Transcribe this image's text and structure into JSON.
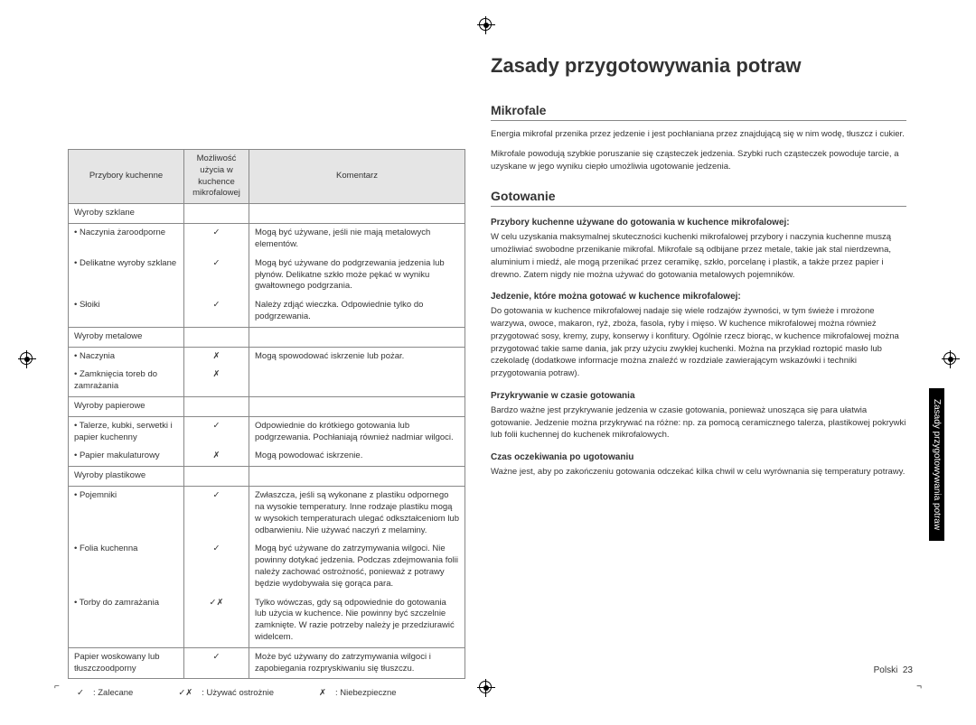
{
  "title": "Zasady przygotowywania potraw",
  "table": {
    "headers": [
      "Przybory kuchenne",
      "Możliwość użycia w kuchence mikrofalowej",
      "Komentarz"
    ],
    "rows": [
      {
        "cat": "Wyroby szklane",
        "item": "",
        "sym": "",
        "com": ""
      },
      {
        "cat": "",
        "item": "Naczynia żaroodporne",
        "sym": "✓",
        "com": "Mogą być używane, jeśli nie mają metalowych elementów."
      },
      {
        "cat": "",
        "item": "Delikatne wyroby szklane",
        "sym": "✓",
        "com": "Mogą być używane do podgrzewania jedzenia lub płynów. Delikatne szkło może pękać w wyniku gwałtownego podgrzania."
      },
      {
        "cat": "",
        "item": "Słoiki",
        "sym": "✓",
        "com": "Należy zdjąć wieczka. Odpowiednie tylko do podgrzewania."
      },
      {
        "cat": "Wyroby metalowe",
        "item": "",
        "sym": "",
        "com": ""
      },
      {
        "cat": "",
        "item": "Naczynia",
        "sym": "✗",
        "com": "Mogą spowodować iskrzenie lub pożar."
      },
      {
        "cat": "",
        "item": "Zamknięcia toreb do zamrażania",
        "sym": "✗",
        "com": ""
      },
      {
        "cat": "Wyroby papierowe",
        "item": "",
        "sym": "",
        "com": ""
      },
      {
        "cat": "",
        "item": "Talerze, kubki, serwetki i papier kuchenny",
        "sym": "✓",
        "com": "Odpowiednie do krótkiego gotowania lub podgrzewania. Pochłaniają również nadmiar wilgoci."
      },
      {
        "cat": "",
        "item": "Papier makulaturowy",
        "sym": "✗",
        "com": "Mogą powodować iskrzenie."
      },
      {
        "cat": "Wyroby plastikowe",
        "item": "",
        "sym": "",
        "com": ""
      },
      {
        "cat": "",
        "item": "Pojemniki",
        "sym": "✓",
        "com": "Zwłaszcza, jeśli są wykonane z plastiku odpornego na wysokie temperatury. Inne rodzaje plastiku mogą w wysokich temperaturach ulegać odkształceniom lub odbarwieniu. Nie używać naczyń z melaminy."
      },
      {
        "cat": "",
        "item": "Folia kuchenna",
        "sym": "✓",
        "com": "Mogą być używane do zatrzymywania wilgoci. Nie powinny dotykać jedzenia. Podczas zdejmowania folii należy zachować ostrożność, ponieważ z potrawy będzie wydobywała się gorąca para."
      },
      {
        "cat": "",
        "item": "Torby do zamrażania",
        "sym": "✓✗",
        "com": "Tylko wówczas, gdy są odpowiednie do gotowania lub użycia w kuchence. Nie powinny być szczelnie zamknięte. W razie potrzeby należy je przedziurawić widelcem."
      },
      {
        "cat": "Papier woskowany lub tłuszczoodporny",
        "item": "",
        "sym": "✓",
        "com": "Może być używany do zatrzymywania wilgoci i zapobiegania rozpryskiwaniu się tłuszczu."
      }
    ]
  },
  "legend": [
    {
      "sym": "✓",
      "label": ": Zalecane"
    },
    {
      "sym": "✓✗",
      "label": ": Używać ostrożnie"
    },
    {
      "sym": "✗",
      "label": ": Niebezpieczne"
    }
  ],
  "sections": {
    "mikrofale": {
      "heading": "Mikrofale",
      "p1": "Energia mikrofal przenika przez jedzenie i jest pochłaniana przez znajdującą się w nim wodę, tłuszcz i cukier.",
      "p2": "Mikrofale powodują szybkie poruszanie się cząsteczek jedzenia. Szybki ruch cząsteczek powoduje tarcie, a uzyskane w jego wyniku ciepło umożliwia ugotowanie jedzenia."
    },
    "gotowanie": {
      "heading": "Gotowanie",
      "s1": "Przybory kuchenne używane do gotowania w kuchence mikrofalowej:",
      "p1": "W celu uzyskania maksymalnej skuteczności kuchenki mikrofalowej przybory i naczynia kuchenne muszą umożliwiać swobodne przenikanie mikrofal. Mikrofale są odbijane przez metale, takie jak stal nierdzewna, aluminium i miedź, ale mogą przenikać przez ceramikę, szkło, porcelanę i plastik, a także przez papier i drewno. Zatem nigdy nie można używać do gotowania metalowych pojemników.",
      "s2": "Jedzenie, które można gotować w kuchence mikrofalowej:",
      "p2": "Do gotowania w kuchence mikrofalowej nadaje się wiele rodzajów żywności, w tym świeże i mrożone warzywa, owoce, makaron, ryż, zboża, fasola, ryby i mięso. W kuchence mikrofalowej można również przygotować sosy, kremy, zupy, konserwy i konfitury. Ogólnie rzecz biorąc, w kuchence mikrofalowej można przygotować takie same dania, jak przy użyciu zwykłej kuchenki. Można na przykład roztopić masło lub czekoladę (dodatkowe informacje można znaleźć w rozdziale zawierającym wskazówki i techniki przygotowania potraw).",
      "s3": "Przykrywanie w czasie gotowania",
      "p3": "Bardzo ważne jest przykrywanie jedzenia w czasie gotowania, ponieważ unosząca się para ułatwia gotowanie. Jedzenie można przykrywać na różne: np. za pomocą ceramicznego talerza, plastikowej pokrywki lub folii kuchennej do kuchenek mikrofalowych.",
      "s4": "Czas oczekiwania po ugotowaniu",
      "p4": "Ważne jest, aby po zakończeniu gotowania odczekać kilka chwil w celu wyrównania się temperatury potrawy."
    }
  },
  "sideTab": "Zasady przygotowywania potraw",
  "footer": {
    "lang": "Polski",
    "page": "23"
  }
}
